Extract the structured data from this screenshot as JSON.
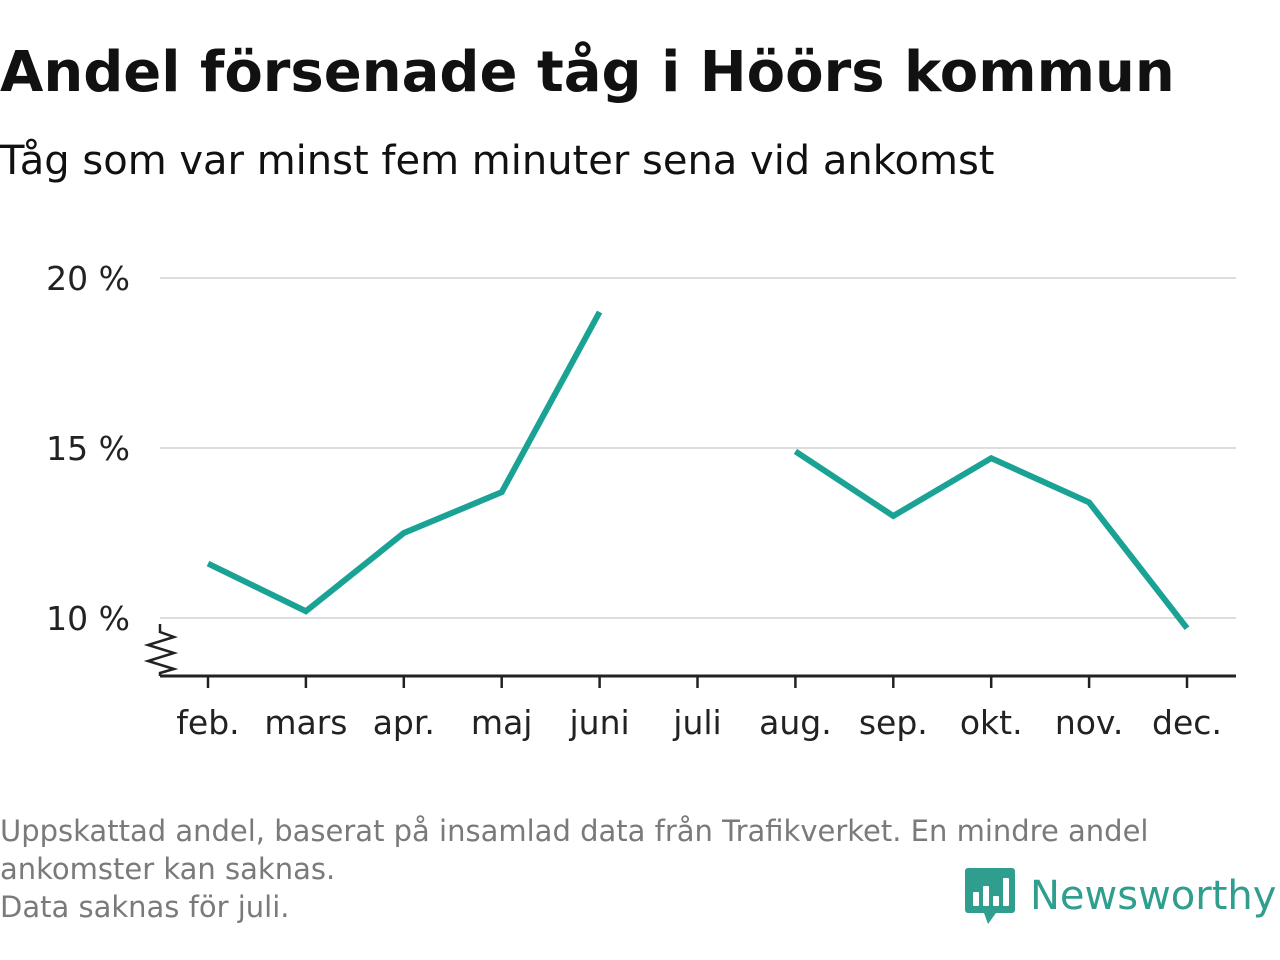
{
  "header": {
    "title": "Andel försenade tåg i Höörs kommun",
    "subtitle": "Tåg som var minst fem minuter sena vid ankomst"
  },
  "chart_data": {
    "type": "line",
    "categories": [
      "feb.",
      "mars",
      "apr.",
      "maj",
      "juni",
      "juli",
      "aug.",
      "sep.",
      "okt.",
      "nov.",
      "dec."
    ],
    "series": [
      {
        "values": [
          11.6,
          10.2,
          12.5,
          13.7,
          19.0,
          null,
          14.9,
          13.0,
          14.7,
          13.4,
          9.7
        ]
      }
    ],
    "y_ticks": [
      10,
      15,
      20
    ],
    "y_tick_labels": [
      "10 %",
      "15 %",
      "20 %"
    ],
    "ylim": [
      8.3,
      20
    ],
    "y_axis_broken": true,
    "grid": true,
    "line_color": "#1aa394",
    "grid_color": "#dddddd",
    "axis_color": "#222222"
  },
  "footer": {
    "note_lines": [
      "Uppskattad andel, baserat på insamlad data från Trafikverket. En mindre andel",
      "ankomster kan saknas.",
      "Data saknas för juli."
    ],
    "brand": "Newsworthy",
    "brand_color": "#2f9e8f"
  }
}
